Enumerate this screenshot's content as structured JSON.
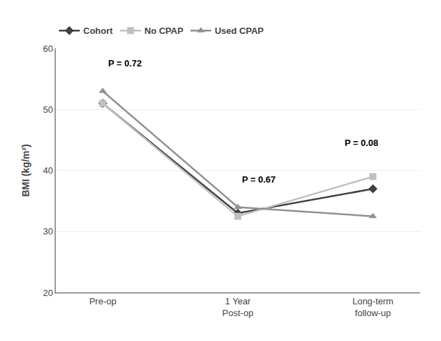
{
  "chart_data": {
    "type": "line",
    "categories": [
      "Pre-op",
      "1 Year\nPost-op",
      "Long-term\nfollow-up"
    ],
    "series": [
      {
        "name": "Cohort",
        "color": "#404040",
        "marker": "diamond",
        "values": [
          51.0,
          33.0,
          37.0
        ]
      },
      {
        "name": "No CPAP",
        "color": "#c0c0c0",
        "marker": "square",
        "values": [
          51.0,
          32.5,
          39.0
        ]
      },
      {
        "name": "Used CPAP",
        "color": "#909090",
        "marker": "triangle-up",
        "values": [
          53.0,
          34.0,
          32.5
        ]
      }
    ],
    "ylabel": "BMI (kg/m²)",
    "ylim": [
      20,
      60
    ],
    "yticks": [
      20,
      30,
      40,
      50,
      60
    ],
    "grid": true,
    "legend": "top",
    "annotations": [
      {
        "text": "P = 0.72",
        "x": 0.03,
        "y": 56.5
      },
      {
        "text": "P = 0.67",
        "x": 1.02,
        "y": 37.5
      },
      {
        "text": "P = 0.08",
        "x": 1.78,
        "y": 43.5
      }
    ]
  }
}
